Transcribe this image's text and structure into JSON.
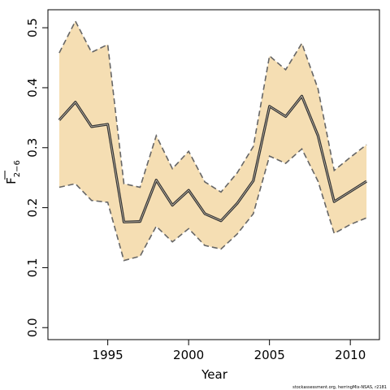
{
  "chart_data": {
    "type": "area",
    "xlabel": "Year",
    "ylabel": "F",
    "ylabel_subscript": "2−6",
    "xlim": [
      1991.3,
      2011.8
    ],
    "ylim": [
      -0.02,
      0.53
    ],
    "xticks": [
      1995,
      2000,
      2005,
      2010
    ],
    "yticks": [
      0.0,
      0.1,
      0.2,
      0.3,
      0.4,
      0.5
    ],
    "ytick_labels": [
      "0.0",
      "0.1",
      "0.2",
      "0.3",
      "0.4",
      "0.5"
    ],
    "grid": false,
    "x": [
      1992,
      1993,
      1994,
      1995,
      1996,
      1997,
      1998,
      1999,
      2000,
      2001,
      2002,
      2003,
      2004,
      2005,
      2006,
      2007,
      2008,
      2009,
      2010,
      2011
    ],
    "series": [
      {
        "role": "estimate",
        "values": [
          0.346,
          0.376,
          0.335,
          0.339,
          0.176,
          0.177,
          0.246,
          0.204,
          0.229,
          0.19,
          0.178,
          0.207,
          0.245,
          0.369,
          0.352,
          0.386,
          0.32,
          0.21,
          0.227,
          0.244
        ]
      },
      {
        "role": "upper",
        "values": [
          0.458,
          0.511,
          0.459,
          0.472,
          0.24,
          0.234,
          0.32,
          0.265,
          0.294,
          0.243,
          0.226,
          0.258,
          0.302,
          0.453,
          0.43,
          0.474,
          0.398,
          0.262,
          0.284,
          0.305
        ]
      },
      {
        "role": "lower",
        "values": [
          0.234,
          0.24,
          0.212,
          0.209,
          0.112,
          0.119,
          0.169,
          0.143,
          0.165,
          0.137,
          0.131,
          0.156,
          0.19,
          0.286,
          0.274,
          0.298,
          0.244,
          0.157,
          0.172,
          0.183
        ]
      }
    ],
    "colors": {
      "band": "#f5deb3",
      "estimate": "#333333",
      "bound": "#666666"
    },
    "source_note": "stockassessment.org, herringMix-NSAS, r2181"
  }
}
